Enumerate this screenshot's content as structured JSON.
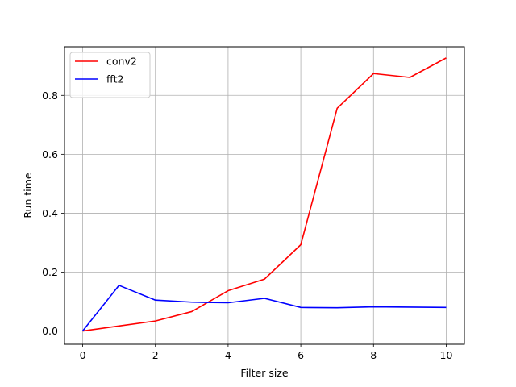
{
  "chart_data": {
    "type": "line",
    "title": "",
    "xlabel": "Filter size",
    "ylabel": "Run time",
    "x": [
      0,
      1,
      2,
      3,
      4,
      5,
      6,
      7,
      8,
      9,
      10
    ],
    "xlim": [
      -0.5,
      10.5
    ],
    "ylim": [
      -0.045,
      0.965
    ],
    "xticks": [
      0,
      2,
      4,
      6,
      8,
      10
    ],
    "xtick_labels": [
      "0",
      "2",
      "4",
      "6",
      "8",
      "10"
    ],
    "yticks": [
      0.0,
      0.2,
      0.4,
      0.6,
      0.8
    ],
    "ytick_labels": [
      "0.0",
      "0.2",
      "0.4",
      "0.6",
      "0.8"
    ],
    "grid": true,
    "legend_position": "top-left",
    "series": [
      {
        "name": "conv2",
        "color": "#ff0000",
        "values": [
          0.0,
          0.017,
          0.034,
          0.066,
          0.137,
          0.176,
          0.293,
          0.756,
          0.874,
          0.861,
          0.927
        ]
      },
      {
        "name": "fft2",
        "color": "#0000ff",
        "values": [
          0.0,
          0.155,
          0.105,
          0.098,
          0.096,
          0.111,
          0.08,
          0.079,
          0.082,
          0.081,
          0.08
        ]
      }
    ]
  }
}
